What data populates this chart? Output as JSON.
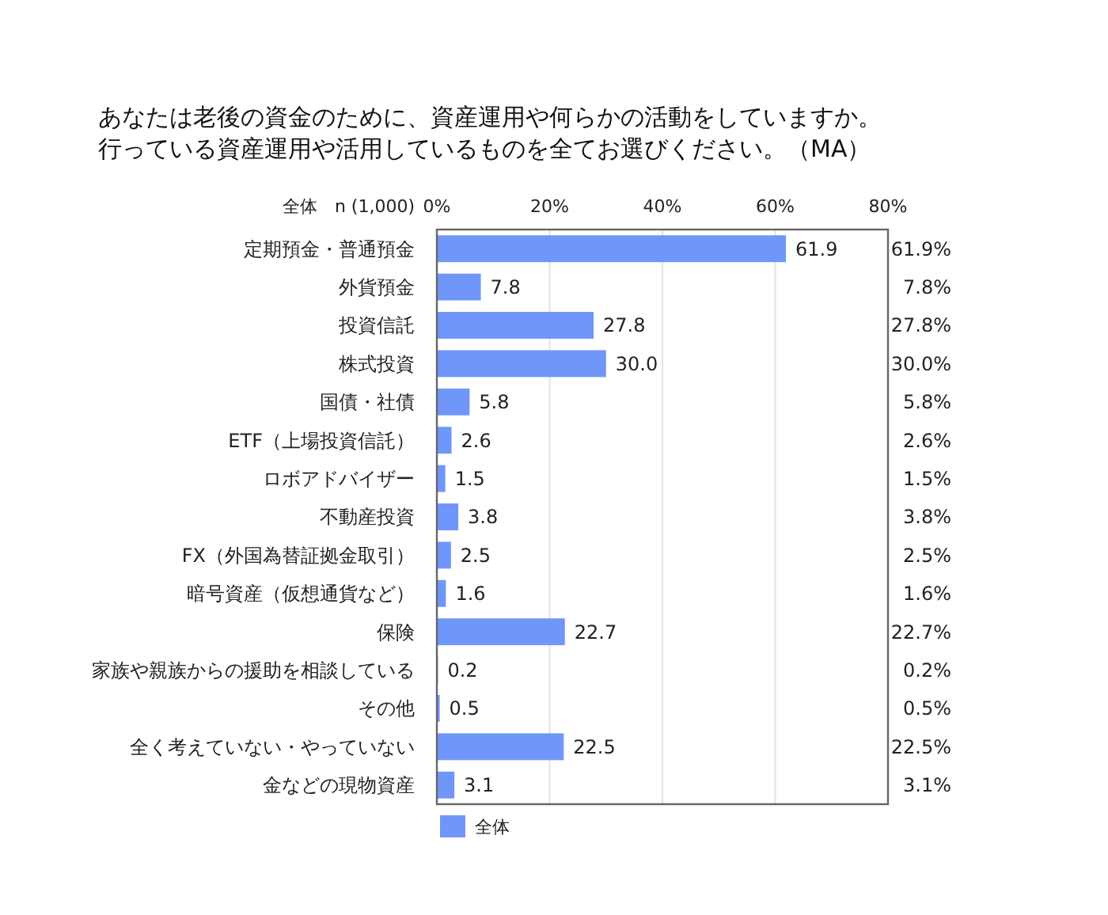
{
  "chart_data": {
    "type": "bar",
    "orientation": "horizontal",
    "title": "あなたは老後の資金のために、資産運用や何らかの活動をしていますか。",
    "subtitle": "行っている資産運用や活用しているものを全てお選びください。（MA）",
    "ylabel": "全体　n (1,000)",
    "categories": [
      "定期預金・普通預金",
      "外貨預金",
      "投資信託",
      "株式投資",
      "国債・社債",
      "ETF（上場投資信託）",
      "ロボアドバイザー",
      "不動産投資",
      "FX（外国為替証拠金取引）",
      "暗号資産（仮想通貨など）",
      "保険",
      "家族や親族からの援助を相談している",
      "その他",
      "全く考えていない・やっていない",
      "金などの現物資産"
    ],
    "series": [
      {
        "name": "全体",
        "color": "#6f96f8",
        "values": [
          61.9,
          7.8,
          27.8,
          30.0,
          5.8,
          2.6,
          1.5,
          3.8,
          2.5,
          1.6,
          22.7,
          0.2,
          0.5,
          22.5,
          3.1
        ],
        "value_labels": [
          "61.9",
          "7.8",
          "27.8",
          "30.0",
          "5.8",
          "2.6",
          "1.5",
          "3.8",
          "2.5",
          "1.6",
          "22.7",
          "0.2",
          "0.5",
          "22.5",
          "3.1"
        ]
      }
    ],
    "annotations": [
      "61.9%",
      "7.8%",
      "27.8%",
      "30.0%",
      "5.8%",
      "2.6%",
      "1.5%",
      "3.8%",
      "2.5%",
      "1.6%",
      "22.7%",
      "0.2%",
      "0.5%",
      "22.5%",
      "3.1%"
    ],
    "xlim": [
      0,
      80
    ],
    "xticks": [
      {
        "value": 0,
        "label": "0%"
      },
      {
        "value": 20,
        "label": "20%"
      },
      {
        "value": 40,
        "label": "40%"
      },
      {
        "value": 60,
        "label": "60%"
      },
      {
        "value": 80,
        "label": "80%"
      }
    ],
    "grid": "x",
    "legend": "bottom left"
  }
}
